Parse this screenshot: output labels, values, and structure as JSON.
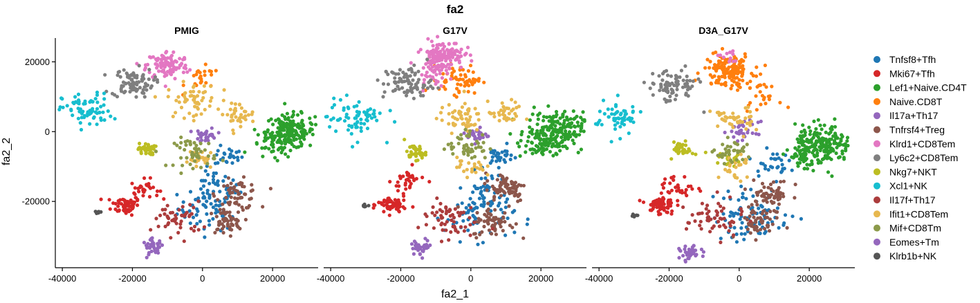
{
  "chart_data": {
    "type": "scatter",
    "title": "fa2",
    "xlabel": "fa2_1",
    "ylabel": "fa2_2",
    "xlim": [
      -42000,
      33000
    ],
    "ylim": [
      -39000,
      29000
    ],
    "x_ticks": [
      -40000,
      -20000,
      0,
      20000
    ],
    "x_tick_labels": [
      "-40000",
      "-20000",
      "0",
      "20000"
    ],
    "y_ticks": [
      -20000,
      0,
      20000
    ],
    "y_tick_labels": [
      "-20000",
      "0",
      "20000"
    ],
    "legend_position": "right",
    "panels": [
      {
        "name": "PMIG",
        "key": "PMIG"
      },
      {
        "name": "G17V",
        "key": "G17V"
      },
      {
        "name": "D3A_G17V",
        "key": "D3A"
      }
    ],
    "series": [
      {
        "name": "Tnfsf8+Tfh",
        "color": "#1f77b4",
        "centers": {
          "PMIG": [
            [
              2000,
              -22000,
              4500,
              1
            ],
            [
              3500,
              -16000,
              3500,
              0.6
            ],
            [
              7500,
              -7000,
              2000,
              0.4
            ]
          ],
          "G17V": [
            [
              2500,
              -24000,
              5000,
              1.2
            ],
            [
              8000,
              -7000,
              2000,
              0.5
            ],
            [
              4500,
              -16000,
              3000,
              0.5
            ]
          ],
          "D3A": [
            [
              3500,
              -24000,
              5500,
              1.4
            ],
            [
              9000,
              -9000,
              2500,
              0.5
            ]
          ]
        }
      },
      {
        "name": "Mki67+Tfh",
        "color": "#d62728",
        "centers": {
          "PMIG": [
            [
              -22000,
              -21000,
              2000,
              1
            ],
            [
              -16500,
              -16500,
              2000,
              0.5
            ]
          ],
          "G17V": [
            [
              -22500,
              -21000,
              2000,
              1
            ],
            [
              -17500,
              -14000,
              2500,
              0.5
            ]
          ],
          "D3A": [
            [
              -22500,
              -21000,
              2000,
              1
            ],
            [
              -17500,
              -16000,
              2500,
              0.5
            ]
          ]
        }
      },
      {
        "name": "Lef1+Naive.CD4T",
        "color": "#2ca02c",
        "centers": {
          "PMIG": [
            [
              25000,
              0,
              3500,
              3
            ],
            [
              20000,
              -4000,
              3000,
              0.6
            ]
          ],
          "G17V": [
            [
              24000,
              0,
              4000,
              3.5
            ],
            [
              19000,
              -4000,
              3000,
              0.6
            ]
          ],
          "D3A": [
            [
              24000,
              -4000,
              4000,
              3.2
            ],
            [
              19000,
              -7000,
              3000,
              0.6
            ]
          ]
        }
      },
      {
        "name": "Naive.CD8T",
        "color": "#ff7f0e",
        "centers": {
          "PMIG": [
            [
              100,
              15000,
              2500,
              0.4
            ]
          ],
          "G17V": [
            [
              -3000,
              15000,
              3000,
              1
            ]
          ],
          "D3A": [
            [
              -3000,
              17500,
              3500,
              2.5
            ],
            [
              6000,
              10000,
              2500,
              0.4
            ]
          ]
        }
      },
      {
        "name": "Il17a+Th17",
        "color": "#9467bd",
        "centers": {
          "PMIG": [
            [
              1000,
              -1000,
              1500,
              0.5
            ]
          ],
          "G17V": [
            [
              2000,
              -1000,
              1500,
              0.5
            ]
          ],
          "D3A": [
            [
              1500,
              0,
              2000,
              0.5
            ]
          ]
        }
      },
      {
        "name": "Tnfrsf4+Treg",
        "color": "#8c564b",
        "centers": {
          "PMIG": [
            [
              10000,
              -18000,
              3000,
              1
            ],
            [
              6500,
              -26000,
              2500,
              0.8
            ]
          ],
          "G17V": [
            [
              10000,
              -16000,
              3000,
              1.2
            ],
            [
              6500,
              -26000,
              3000,
              1
            ]
          ],
          "D3A": [
            [
              9000,
              -18000,
              3000,
              1
            ],
            [
              5500,
              -26000,
              3000,
              0.8
            ]
          ]
        }
      },
      {
        "name": "Klrd1+CD8Tem",
        "color": "#e377c2",
        "centers": {
          "PMIG": [
            [
              -10000,
              19000,
              3000,
              1.8
            ]
          ],
          "G17V": [
            [
              -8000,
              22000,
              3000,
              2.2
            ],
            [
              -11000,
              17000,
              2500,
              0.6
            ]
          ],
          "D3A": [
            [
              -3000,
              21000,
              1500,
              0.2
            ]
          ]
        }
      },
      {
        "name": "Ly6c2+CD8Tem",
        "color": "#7f7f7f",
        "centers": {
          "PMIG": [
            [
              -20000,
              14000,
              3000,
              1.4
            ]
          ],
          "G17V": [
            [
              -18000,
              14000,
              3500,
              1.4
            ]
          ],
          "D3A": [
            [
              -19000,
              13000,
              3500,
              1.3
            ]
          ]
        }
      },
      {
        "name": "Nkg7+NKT",
        "color": "#bcbd22",
        "centers": {
          "PMIG": [
            [
              -16000,
              -5000,
              1200,
              0.6
            ]
          ],
          "G17V": [
            [
              -16000,
              -6000,
              1500,
              0.6
            ]
          ],
          "D3A": [
            [
              -16000,
              -5000,
              1500,
              0.6
            ],
            [
              -2000,
              -8000,
              1500,
              0.3
            ]
          ]
        }
      },
      {
        "name": "Xcl1+NK",
        "color": "#17becf",
        "centers": {
          "PMIG": [
            [
              -33000,
              6000,
              3500,
              1.2
            ]
          ],
          "G17V": [
            [
              -33000,
              4000,
              4000,
              1.2
            ]
          ],
          "D3A": [
            [
              -35000,
              4000,
              3500,
              1
            ]
          ]
        }
      },
      {
        "name": "Il17f+Th17",
        "color": "#ab3c3c",
        "centers": {
          "PMIG": [
            [
              -7000,
              -25000,
              3500,
              0.8
            ]
          ],
          "G17V": [
            [
              -7000,
              -25000,
              4000,
              1
            ]
          ],
          "D3A": [
            [
              -7000,
              -25000,
              4000,
              0.9
            ]
          ]
        }
      },
      {
        "name": "Ifit1+CD8Tem",
        "color": "#e7b84f",
        "centers": {
          "PMIG": [
            [
              -3000,
              9000,
              3500,
              0.9
            ],
            [
              10000,
              5000,
              2500,
              0.6
            ],
            [
              0,
              -8000,
              2000,
              0.4
            ]
          ],
          "G17V": [
            [
              -3000,
              4000,
              3000,
              0.9
            ],
            [
              10000,
              5000,
              2500,
              0.6
            ],
            [
              0,
              -10000,
              2000,
              0.4
            ]
          ],
          "D3A": [
            [
              -2000,
              3000,
              3000,
              0.7
            ],
            [
              -1000,
              -10000,
              2500,
              0.4
            ]
          ]
        }
      },
      {
        "name": "Mif+CD8Tm",
        "color": "#8c9a4a",
        "centers": {
          "PMIG": [
            [
              -2000,
              -6000,
              3000,
              0.8
            ]
          ],
          "G17V": [
            [
              -1000,
              -4000,
              3000,
              0.8
            ]
          ],
          "D3A": [
            [
              -2000,
              -6000,
              2500,
              0.6
            ]
          ]
        }
      },
      {
        "name": "Eomes+Tm",
        "color": "#9467bd",
        "centers": {
          "PMIG": [
            [
              -14000,
              -33000,
              1500,
              0.6
            ]
          ],
          "G17V": [
            [
              -14000,
              -33000,
              1500,
              0.6
            ]
          ],
          "D3A": [
            [
              -14000,
              -35000,
              1500,
              0.6
            ]
          ]
        }
      },
      {
        "name": "Klrb1b+NK",
        "color": "#555555",
        "centers": {
          "PMIG": [
            [
              -30000,
              -23000,
              500,
              0.1
            ]
          ],
          "G17V": [
            [
              -30000,
              -21000,
              500,
              0.1
            ]
          ],
          "D3A": [
            [
              -30000,
              -24000,
              500,
              0.1
            ]
          ]
        }
      }
    ]
  }
}
